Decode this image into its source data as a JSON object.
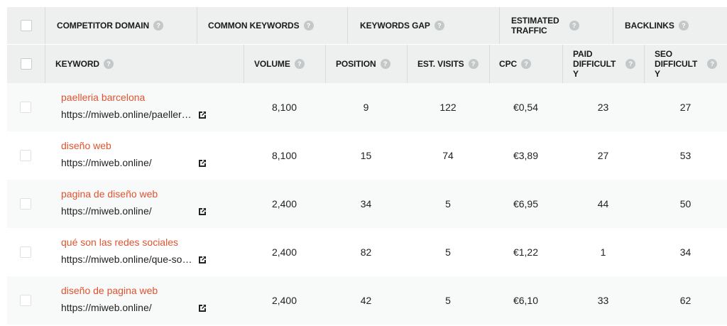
{
  "top_header": {
    "columns": [
      {
        "label": "COMPETITOR DOMAIN"
      },
      {
        "label": "COMMON KEYWORDS"
      },
      {
        "label": "KEYWORDS GAP"
      },
      {
        "label_line1": "ESTIMATED",
        "label_line2": "TRAFFIC"
      },
      {
        "label": "BACKLINKS"
      }
    ],
    "help_glyph": "?"
  },
  "table_header": {
    "keyword": "KEYWORD",
    "volume": "VOLUME",
    "position": "POSITION",
    "est_visits": "EST. VISITS",
    "cpc": "CPC",
    "paid_difficulty": [
      "PAID",
      "DIFFICULT",
      "Y"
    ],
    "seo_difficulty": [
      "SEO",
      "DIFFICULT",
      "Y"
    ]
  },
  "rows": [
    {
      "keyword": "paelleria barcelona",
      "url": "https://miweb.online/paelleria-barcelona/",
      "volume": "8,100",
      "position": "9",
      "est_visits": "122",
      "cpc": "€0,54",
      "paid_difficulty": "23",
      "seo_difficulty": "27"
    },
    {
      "keyword": "diseño web",
      "url": "https://miweb.online/",
      "volume": "8,100",
      "position": "15",
      "est_visits": "74",
      "cpc": "€3,89",
      "paid_difficulty": "27",
      "seo_difficulty": "53"
    },
    {
      "keyword": "pagina de diseño web",
      "url": "https://miweb.online/",
      "volume": "2,400",
      "position": "34",
      "est_visits": "5",
      "cpc": "€6,95",
      "paid_difficulty": "44",
      "seo_difficulty": "50"
    },
    {
      "keyword": "qué son las redes sociales",
      "url": "https://miweb.online/que-son-las-redes-sociales/",
      "volume": "2,400",
      "position": "82",
      "est_visits": "5",
      "cpc": "€1,22",
      "paid_difficulty": "1",
      "seo_difficulty": "34"
    },
    {
      "keyword": "diseño de pagina web",
      "url": "https://miweb.online/",
      "volume": "2,400",
      "position": "42",
      "est_visits": "5",
      "cpc": "€6,10",
      "paid_difficulty": "33",
      "seo_difficulty": "62"
    }
  ],
  "colors": {
    "accent_keyword": "#e0532f",
    "header_bg": "#eef0f0",
    "help_icon": "#c5c8c8"
  },
  "icons": {
    "help": "help-circle-icon",
    "external": "external-link-icon",
    "checkbox": "checkbox"
  }
}
